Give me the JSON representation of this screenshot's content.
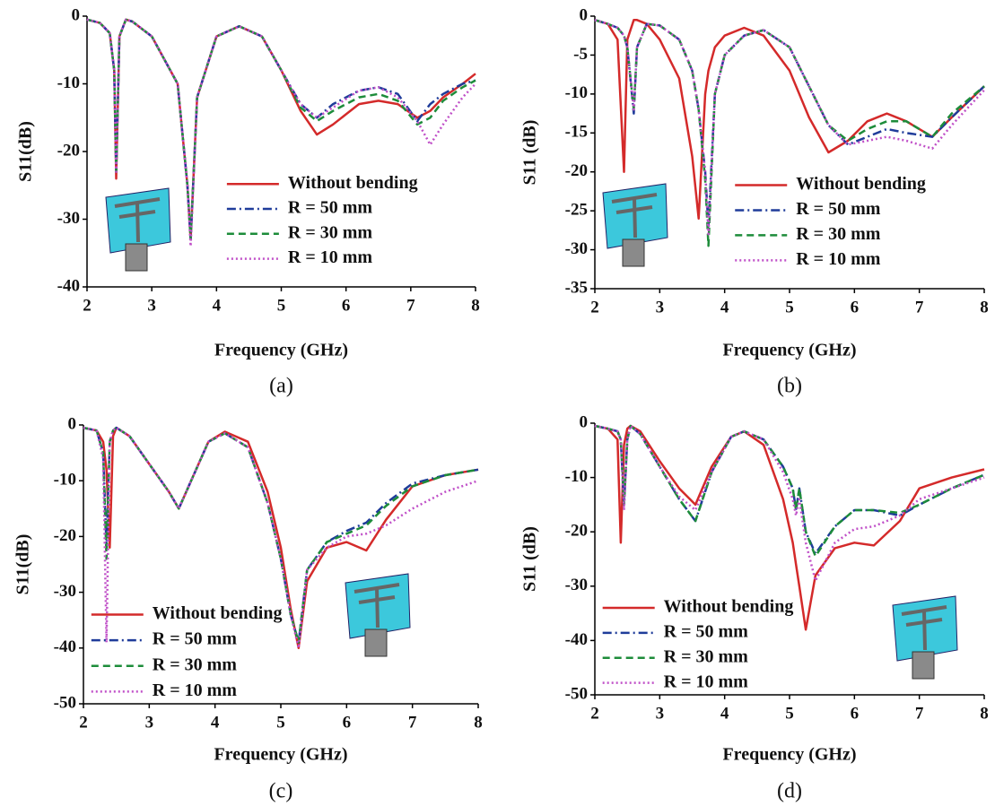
{
  "chart_data": [
    {
      "type": "line",
      "caption": "(a)",
      "x_label": "Frequency (GHz)",
      "y_label": "S11(dB)",
      "xlim": [
        2,
        8
      ],
      "xticks": [
        2,
        3,
        4,
        5,
        6,
        7,
        8
      ],
      "ylim": [
        -40,
        0
      ],
      "yticks": [
        0,
        -10,
        -20,
        -30,
        -40
      ],
      "legend": "center right",
      "x": [
        2.0,
        2.2,
        2.35,
        2.42,
        2.45,
        2.5,
        2.6,
        2.7,
        3.0,
        3.4,
        3.55,
        3.6,
        3.7,
        4.0,
        4.35,
        4.7,
        5.0,
        5.3,
        5.55,
        5.8,
        6.2,
        6.5,
        6.8,
        7.1,
        7.3,
        7.5,
        7.8,
        8.0
      ],
      "series": [
        {
          "name": "Without bending",
          "color": "#d42a2a",
          "dash": "solid",
          "values": [
            -0.5,
            -1,
            -2.5,
            -8,
            -24,
            -3,
            -0.5,
            -0.8,
            -3,
            -10,
            -25,
            -33,
            -12,
            -3,
            -1.5,
            -3,
            -8,
            -14,
            -17.5,
            -16,
            -13,
            -12.5,
            -13,
            -15,
            -14,
            -12,
            -10,
            -8.5
          ]
        },
        {
          "name": "R = 50 mm",
          "color": "#1f3c9a",
          "dash": "dashdot",
          "values": [
            -0.5,
            -1,
            -2.5,
            -8,
            -23,
            -3,
            -0.5,
            -0.8,
            -3,
            -10,
            -25,
            -33,
            -12,
            -3,
            -1.5,
            -3,
            -8,
            -13,
            -15,
            -13,
            -11,
            -10.5,
            -11.5,
            -15.5,
            -13,
            -11.5,
            -10,
            -9.5
          ]
        },
        {
          "name": "R = 30 mm",
          "color": "#1d8c3a",
          "dash": "dashed",
          "values": [
            -0.5,
            -1,
            -2.5,
            -8,
            -23,
            -3,
            -0.5,
            -0.8,
            -3,
            -10,
            -25,
            -33,
            -12,
            -3,
            -1.5,
            -3,
            -8,
            -13.5,
            -15.5,
            -14,
            -12,
            -11.5,
            -12.5,
            -16,
            -15,
            -12.5,
            -10.5,
            -9.5
          ]
        },
        {
          "name": "R = 10 mm",
          "color": "#c050c8",
          "dash": "dotted",
          "values": [
            -0.5,
            -1,
            -2.5,
            -8,
            -23,
            -3,
            -0.5,
            -0.8,
            -3,
            -10,
            -25,
            -34,
            -12,
            -3,
            -1.5,
            -3,
            -8,
            -13,
            -15,
            -13.5,
            -11,
            -10.5,
            -12,
            -15.5,
            -19,
            -16,
            -12,
            -10
          ]
        }
      ]
    },
    {
      "type": "line",
      "caption": "(b)",
      "x_label": "Frequency (GHz)",
      "y_label": "S11 (dB)",
      "xlim": [
        2,
        8
      ],
      "xticks": [
        2,
        3,
        4,
        5,
        6,
        7,
        8
      ],
      "ylim": [
        -35,
        0
      ],
      "yticks": [
        0,
        -5,
        -10,
        -15,
        -20,
        -25,
        -30,
        -35
      ],
      "legend": "center right",
      "x": [
        2.0,
        2.2,
        2.35,
        2.45,
        2.5,
        2.6,
        2.65,
        2.8,
        3.0,
        3.3,
        3.5,
        3.6,
        3.7,
        3.75,
        3.85,
        4.0,
        4.3,
        4.6,
        5.0,
        5.3,
        5.6,
        5.9,
        6.2,
        6.5,
        6.8,
        7.2,
        7.5,
        8.0
      ],
      "series": [
        {
          "name": "Without bending",
          "color": "#d42a2a",
          "dash": "solid",
          "values": [
            -0.5,
            -1,
            -3,
            -20,
            -3,
            -0.5,
            -0.5,
            -1,
            -3,
            -8,
            -18,
            -26,
            -10,
            -7,
            -4,
            -2.5,
            -1.5,
            -2.5,
            -7,
            -13,
            -17.5,
            -16,
            -13.5,
            -12.5,
            -13.5,
            -15.5,
            -13,
            -9
          ]
        },
        {
          "name": "R = 50 mm",
          "color": "#1f3c9a",
          "dash": "dashdot",
          "values": [
            -0.5,
            -1,
            -1.5,
            -2.5,
            -4,
            -12.5,
            -4,
            -1,
            -1.2,
            -3,
            -7,
            -12,
            -20,
            -27,
            -10,
            -5,
            -2.5,
            -1.8,
            -4,
            -9,
            -14,
            -16.5,
            -15.5,
            -14.5,
            -15,
            -15.5,
            -13,
            -9
          ]
        },
        {
          "name": "R = 30 mm",
          "color": "#1d8c3a",
          "dash": "dashed",
          "values": [
            -0.5,
            -1,
            -1.5,
            -2.5,
            -4,
            -12,
            -4,
            -1,
            -1.2,
            -3,
            -7,
            -12,
            -21,
            -29.5,
            -10,
            -5,
            -2.5,
            -1.8,
            -4,
            -9,
            -14,
            -16,
            -14.5,
            -13.5,
            -13.5,
            -15.5,
            -12.5,
            -9
          ]
        },
        {
          "name": "R = 10 mm",
          "color": "#c050c8",
          "dash": "dotted",
          "values": [
            -0.5,
            -1,
            -1.5,
            -2.5,
            -4,
            -12,
            -4,
            -1,
            -1.2,
            -3,
            -7,
            -12,
            -20,
            -28,
            -10,
            -5,
            -2.5,
            -1.8,
            -4,
            -9,
            -14,
            -16.5,
            -16,
            -15.5,
            -16,
            -17,
            -14,
            -9.5
          ]
        }
      ]
    },
    {
      "type": "line",
      "caption": "(c)",
      "x_label": "Frequency (GHz)",
      "y_label": "S11(dB)",
      "xlim": [
        2,
        8
      ],
      "xticks": [
        2,
        3,
        4,
        5,
        6,
        7,
        8
      ],
      "ylim": [
        -50,
        0
      ],
      "yticks": [
        0,
        -10,
        -20,
        -30,
        -40,
        -50
      ],
      "legend": "lower left",
      "x": [
        2.0,
        2.2,
        2.3,
        2.35,
        2.4,
        2.45,
        2.5,
        2.7,
        3.0,
        3.3,
        3.45,
        3.6,
        3.9,
        4.15,
        4.5,
        4.8,
        5.0,
        5.15,
        5.27,
        5.4,
        5.7,
        6.0,
        6.3,
        6.6,
        7.0,
        7.5,
        8.0
      ],
      "series": [
        {
          "name": "Without bending",
          "color": "#d42a2a",
          "dash": "solid",
          "values": [
            -0.5,
            -1,
            -3,
            -8,
            -22,
            -2,
            -0.5,
            -2,
            -7,
            -12,
            -15,
            -11,
            -3,
            -1.2,
            -3,
            -12,
            -22,
            -33,
            -40,
            -28,
            -22,
            -21,
            -22.5,
            -17,
            -11,
            -9,
            -8
          ]
        },
        {
          "name": "R = 50 mm",
          "color": "#1f3c9a",
          "dash": "dashdot",
          "values": [
            -0.5,
            -1,
            -5,
            -22,
            -3,
            -1,
            -0.5,
            -2,
            -7,
            -12,
            -15,
            -11,
            -3,
            -1.5,
            -4,
            -14,
            -24,
            -34,
            -39,
            -26,
            -21,
            -19,
            -17.5,
            -14,
            -10.5,
            -9,
            -8
          ]
        },
        {
          "name": "R = 30 mm",
          "color": "#1d8c3a",
          "dash": "dashed",
          "values": [
            -0.5,
            -1,
            -5,
            -24,
            -3,
            -1,
            -0.5,
            -2,
            -7,
            -12,
            -15,
            -11,
            -3,
            -1.5,
            -4,
            -14,
            -24,
            -34,
            -39,
            -26,
            -21,
            -19.5,
            -18,
            -14.5,
            -11,
            -9,
            -8
          ]
        },
        {
          "name": "R = 10 mm",
          "color": "#c050c8",
          "dash": "dotted",
          "values": [
            -0.5,
            -1,
            -6,
            -39,
            -3,
            -1,
            -0.5,
            -2,
            -7,
            -12,
            -15,
            -11,
            -3,
            -1.5,
            -4,
            -14,
            -24,
            -34,
            -40,
            -26,
            -22,
            -20,
            -19.5,
            -18,
            -15,
            -12,
            -10
          ]
        }
      ]
    },
    {
      "type": "line",
      "caption": "(d)",
      "x_label": "Frequency (GHz)",
      "y_label": "S11 (dB)",
      "xlim": [
        2,
        8
      ],
      "xticks": [
        2,
        3,
        4,
        5,
        6,
        7,
        8
      ],
      "ylim": [
        -50,
        0
      ],
      "yticks": [
        0,
        -10,
        -20,
        -30,
        -40,
        -50
      ],
      "legend": "lower left",
      "x": [
        2.0,
        2.2,
        2.35,
        2.4,
        2.45,
        2.5,
        2.55,
        2.7,
        3.0,
        3.3,
        3.55,
        3.8,
        4.1,
        4.3,
        4.6,
        4.9,
        5.05,
        5.1,
        5.15,
        5.25,
        5.4,
        5.7,
        6.0,
        6.3,
        6.7,
        7.0,
        7.5,
        8.0
      ],
      "series": [
        {
          "name": "Without bending",
          "color": "#d42a2a",
          "dash": "solid",
          "values": [
            -0.5,
            -1,
            -3,
            -22,
            -4,
            -1,
            -0.5,
            -1.5,
            -7,
            -12,
            -15,
            -8,
            -2.5,
            -1.5,
            -4,
            -14,
            -22,
            -26,
            -30,
            -38,
            -28,
            -23,
            -22,
            -22.5,
            -18,
            -12,
            -10,
            -8.5
          ]
        },
        {
          "name": "R = 50 mm",
          "color": "#1f3c9a",
          "dash": "dashdot",
          "values": [
            -0.5,
            -1,
            -1.5,
            -3,
            -15,
            -3,
            -0.5,
            -2,
            -8,
            -14,
            -18,
            -9,
            -2.5,
            -1.5,
            -3,
            -8,
            -12,
            -16,
            -12,
            -20,
            -24,
            -19,
            -16,
            -16,
            -17,
            -15,
            -12,
            -9.5
          ]
        },
        {
          "name": "R = 30 mm",
          "color": "#1d8c3a",
          "dash": "dashed",
          "values": [
            -0.5,
            -1,
            -1.5,
            -3,
            -15,
            -3,
            -0.5,
            -2,
            -8,
            -14,
            -18,
            -9,
            -2.5,
            -1.5,
            -3,
            -8,
            -12,
            -16,
            -12,
            -20,
            -24.5,
            -19,
            -16,
            -16,
            -16.5,
            -15,
            -12,
            -9.5
          ]
        },
        {
          "name": "R = 10 mm",
          "color": "#c050c8",
          "dash": "dotted",
          "values": [
            -0.5,
            -1,
            -1.5,
            -3,
            -16,
            -3,
            -0.5,
            -2,
            -8,
            -13.5,
            -16,
            -9,
            -2.5,
            -1.5,
            -3,
            -9,
            -14,
            -17,
            -14,
            -22,
            -29,
            -22,
            -19.5,
            -19,
            -17,
            -14,
            -12,
            -10
          ]
        }
      ]
    }
  ]
}
